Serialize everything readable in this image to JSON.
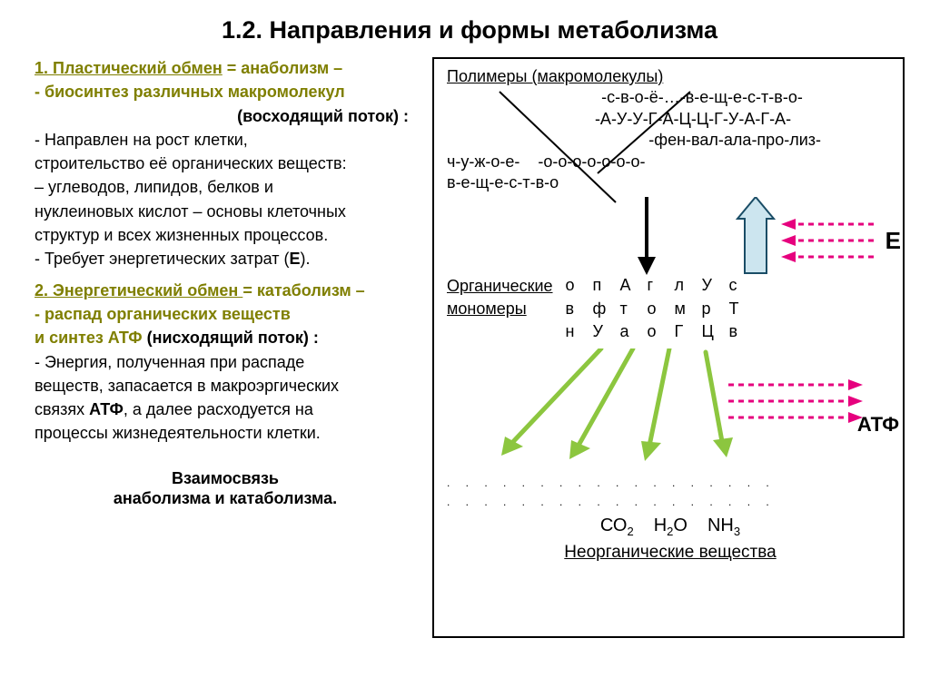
{
  "title": "1.2. Направления и формы метаболизма",
  "left": {
    "h1_a": "1. Пластический обмен",
    "h1_b": " = анаболизм –",
    "h1_sub": "- биосинтез различных макромолекул",
    "ascend": "(восходящий поток) :",
    "body1a": "- Направлен на рост клетки,",
    "body1b": "строительство её органических веществ:",
    "body1c": "– углеводов, липидов, белков и",
    "body1d": "нуклеиновых кислот –  основы клеточных",
    "body1e": "структур и всех жизненных процессов.",
    "body1f_pre": "- Требует энергетических затрат (",
    "body1f_e": "Е",
    "body1f_post": ").",
    "h2_a": "2. Энергетический обмен ",
    "h2_b": "= катаболизм –",
    "h2_sub": "- распад органических веществ",
    "h2_atp_pre": "  и синтез АТФ      ",
    "h2_atp_down": "(нисходящий поток) :",
    "body2a": "- Энергия, полученная при распаде",
    "body2b": "веществ, запасается в макроэргических",
    "body2c_pre": "связях ",
    "body2c_atp": "АТФ",
    "body2c_post": ", а далее расходуется на",
    "body2d": "процессы  жизнедеятельности клетки.",
    "footer1": "Взаимосвязь",
    "footer2": "анаболизма и катаболизма."
  },
  "right": {
    "polymers_label": "Полимеры (макромолекулы)",
    "p_line1": "-с-в-о-ё-…-в-е-щ-е-с-т-в-о-",
    "p_line2": "-А-У-У-Г-А-Ц-Ц-Г-У-А-Г-А-",
    "p_line3": "-фен-вал-ала-про-лиз-",
    "p_line4a": "ч-у-ж-о-е-",
    "p_line4b": "-о-о-о-о-о-о-о-",
    "p_line5": "в-е-щ-е-с-т-в-о",
    "E_label": "Е",
    "monomers_l1": "Органические",
    "monomers_l2": "мономеры",
    "mono_row1": [
      "о",
      "п",
      "А",
      "г",
      "л",
      "У",
      "с"
    ],
    "mono_row2": [
      "в",
      "ф",
      "т",
      "о",
      "м",
      "р",
      "Т"
    ],
    "mono_row3": [
      "н",
      "У",
      "а",
      "о",
      "Г",
      "Ц",
      "в"
    ],
    "atp_label": "АТФ",
    "inorg_co2": "СО",
    "inorg_co2_sub": "2",
    "inorg_h2o_a": "Н",
    "inorg_h2o_sub": "2",
    "inorg_h2o_b": "О",
    "inorg_nh3": "NН",
    "inorg_nh3_sub": "3",
    "inorg_label": "Неорганические вещества",
    "dots": ". . . . . . . . . . . . . . . . . .",
    "colors": {
      "olive": "#7f7f00",
      "green_arrow": "#8cc63f",
      "magenta": "#e6007e",
      "cyan_arrow_fill": "#cce5ef",
      "cyan_arrow_stroke": "#1a4d66"
    }
  }
}
